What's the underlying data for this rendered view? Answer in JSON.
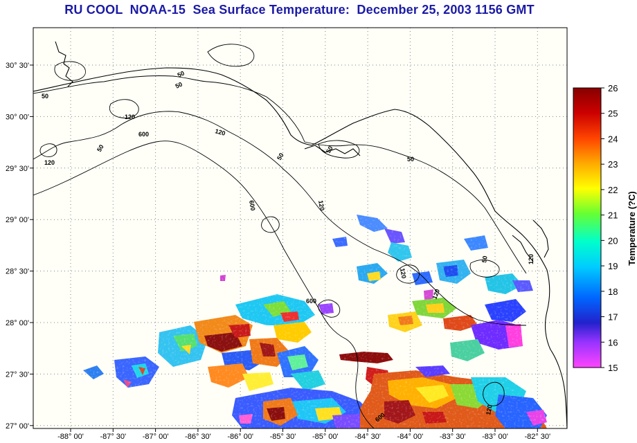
{
  "title": "RU COOL  NOAA-15  Sea Surface Temperature:  December 25, 2003 1156 GMT",
  "map": {
    "lat_ticks": [
      "30° 30'",
      "30° 00'",
      "29° 30'",
      "29° 00'",
      "28° 30'",
      "28° 00'",
      "27° 30'",
      "27° 00'"
    ],
    "lon_ticks": [
      "-88° 00'",
      "-87° 30'",
      "-87° 00'",
      "-86° 30'",
      "-86° 00'",
      "-85° 30'",
      "-85° 00'",
      "-84° 30'",
      "-84° 00'",
      "-83° 30'",
      "-83° 00'",
      "-82° 30'"
    ],
    "contour_labels": [
      "50",
      "50",
      "50",
      "120",
      "120",
      "600",
      "50",
      "50",
      "50",
      "600",
      "120",
      "120",
      "600",
      "120",
      "120",
      "50",
      "120",
      "50",
      "600",
      "120"
    ]
  },
  "colorbar": {
    "title": "Temperature (?C)",
    "min": 15,
    "max": 26,
    "ticks": [
      "26",
      "25",
      "24",
      "23",
      "22",
      "21",
      "20",
      "19",
      "18",
      "17",
      "16",
      "15"
    ],
    "stops": [
      "#ff44ff",
      "#9933ff",
      "#2222cc",
      "#0066ff",
      "#00ccff",
      "#00ffcc",
      "#66ff33",
      "#ffff00",
      "#ffaa00",
      "#ff4400",
      "#cc0000",
      "#880000"
    ]
  }
}
